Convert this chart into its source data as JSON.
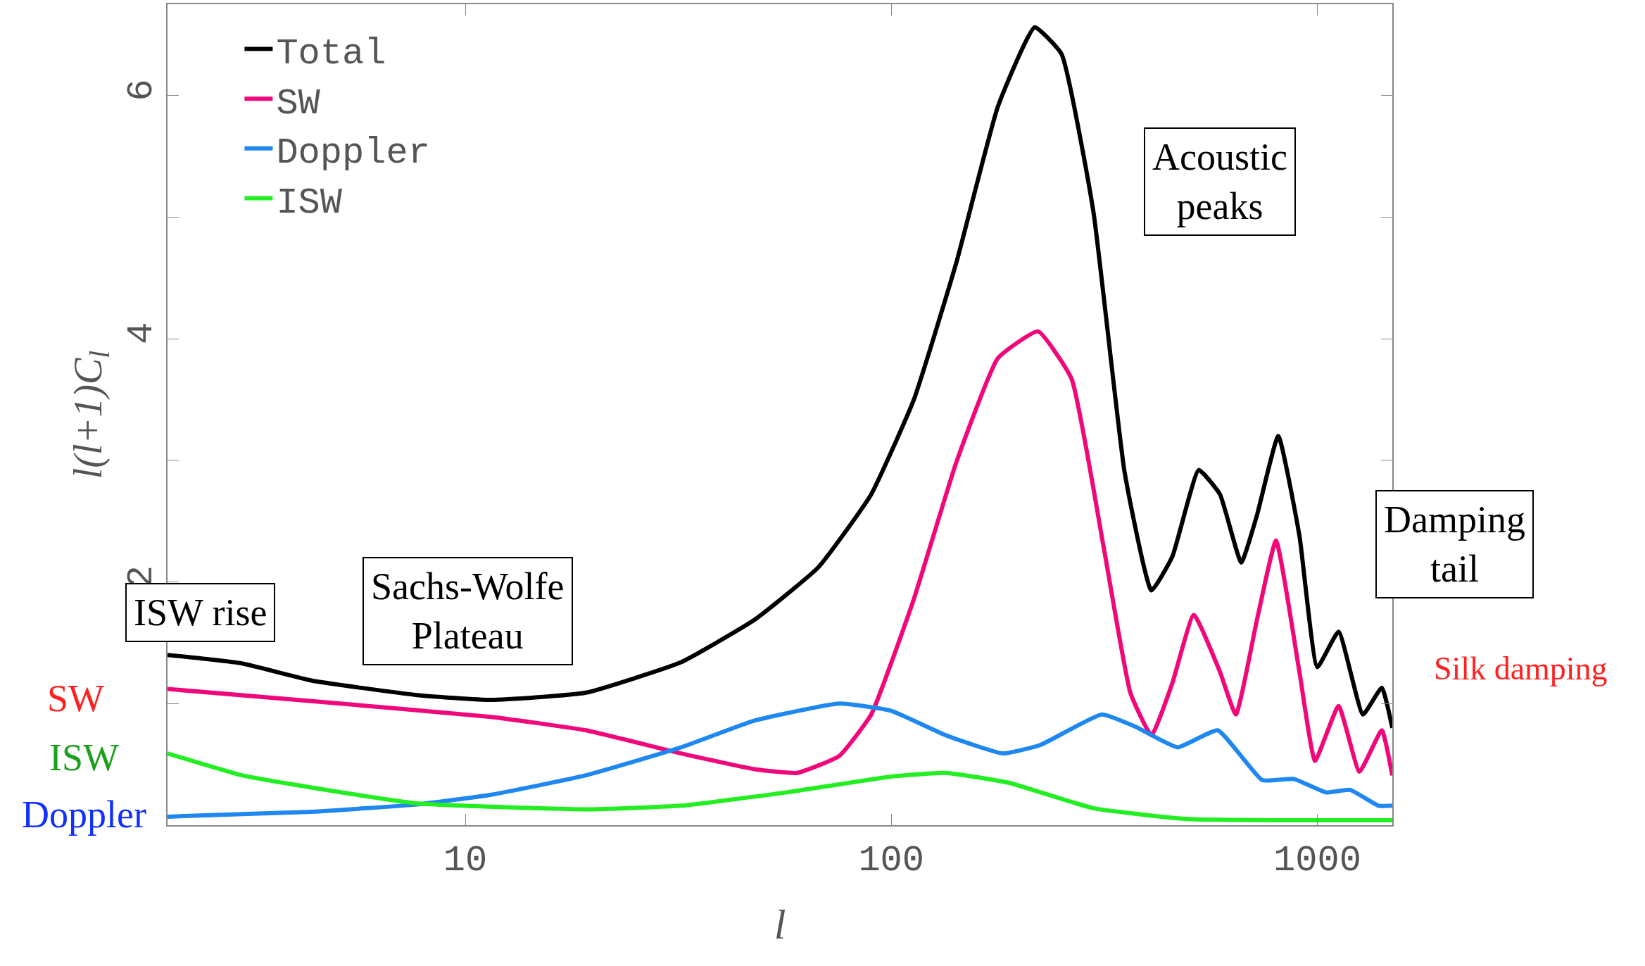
{
  "chart_data": {
    "type": "line",
    "xlabel": "l",
    "ylabel": "l(l+1)C$_{l}$",
    "log": "x",
    "xlim": [
      2,
      1500
    ],
    "xticks": [
      10,
      100,
      1000
    ],
    "ylim": [
      0,
      6.75
    ],
    "yticks": [
      {
        "value": 0,
        "label": null
      },
      {
        "value": 1,
        "label": null
      },
      2,
      {
        "value": 3,
        "label": null
      },
      4,
      {
        "value": 5,
        "label": null
      },
      6
    ],
    "legend": "top left",
    "marker": "none",
    "line_style": "solid",
    "series": [
      {
        "name": "Total",
        "color": "#000000",
        "x": [
          2,
          2.99,
          4.35,
          7.69,
          11.5,
          19.2,
          32.1,
          47.8,
          67.4,
          89.7,
          113,
          142,
          178,
          217,
          251,
          298,
          353,
          408,
          457,
          527,
          591,
          663,
          722,
          810,
          908,
          1000,
          1122,
          1280,
          1417,
          1500
        ],
        "values": [
          1.4,
          1.33,
          1.19,
          1.07,
          1.03,
          1.09,
          1.34,
          1.69,
          2.12,
          2.72,
          3.5,
          4.62,
          5.91,
          6.56,
          6.34,
          5.05,
          2.9,
          1.93,
          2.21,
          2.92,
          2.72,
          2.16,
          2.55,
          3.2,
          2.38,
          1.3,
          1.59,
          0.91,
          1.13,
          0.8
        ]
      },
      {
        "name": "SW",
        "color": "#f0087a",
        "x": [
          2,
          4.35,
          11.5,
          19.2,
          32.1,
          47.8,
          60.1,
          75.5,
          89.7,
          113,
          142,
          178,
          221,
          265,
          315,
          364,
          408,
          457,
          513,
          591,
          644,
          722,
          800,
          908,
          988,
          1122,
          1256,
          1417,
          1500
        ],
        "values": [
          1.12,
          1.02,
          0.89,
          0.78,
          0.59,
          0.46,
          0.43,
          0.57,
          0.91,
          1.86,
          2.98,
          3.84,
          4.06,
          3.67,
          2.29,
          1.09,
          0.74,
          1.17,
          1.73,
          1.26,
          0.91,
          1.69,
          2.34,
          1.26,
          0.53,
          0.98,
          0.44,
          0.78,
          0.41
        ]
      },
      {
        "name": "Doppler",
        "color": "#1e88f0",
        "x": [
          2,
          4.35,
          7.69,
          11.5,
          19.2,
          32.1,
          47.8,
          75.5,
          100,
          134,
          183,
          224,
          312,
          374,
          470,
          584,
          743,
          881,
          1047,
          1194,
          1393,
          1500
        ],
        "values": [
          0.07,
          0.11,
          0.17,
          0.25,
          0.41,
          0.64,
          0.86,
          1.0,
          0.94,
          0.74,
          0.59,
          0.66,
          0.91,
          0.81,
          0.64,
          0.78,
          0.37,
          0.38,
          0.27,
          0.29,
          0.16,
          0.16
        ]
      },
      {
        "name": "ISW",
        "color": "#22ee22",
        "x": [
          2,
          2.99,
          4.35,
          7.69,
          19.2,
          32.1,
          56.8,
          100,
          134,
          188,
          298,
          498,
          1500
        ],
        "values": [
          0.59,
          0.41,
          0.31,
          0.18,
          0.13,
          0.16,
          0.27,
          0.4,
          0.43,
          0.35,
          0.14,
          0.05,
          0.04
        ]
      }
    ],
    "annotations": [
      "ISW rise",
      "Sachs-Wolfe\nPlateau",
      "Acoustic\npeaks",
      "Damping\ntail",
      "Silk damping",
      "SW",
      "ISW",
      "Doppler"
    ]
  }
}
